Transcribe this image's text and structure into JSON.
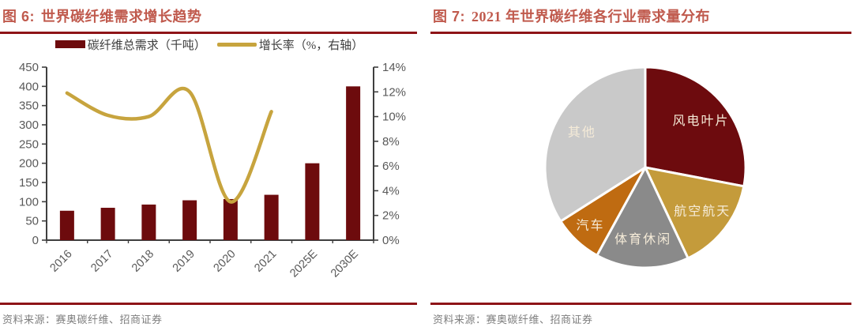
{
  "style": {
    "title_color": "#C05A4D",
    "rule_color": "#8E1418",
    "footer_color": "#7E7E7E",
    "axis_text_color": "#595959",
    "axis_line_color": "#3F3F3F",
    "legend_text_color": "#3D3D3D",
    "background": "#FFFFFF"
  },
  "figure6": {
    "title_label": "图 6:",
    "title_text": "世界碳纤维需求增长趋势",
    "source": "资料来源：赛奥碳纤维、招商证券",
    "chart_data": {
      "type": "bar",
      "subtype": "bar+line dual axis",
      "categories": [
        "2016",
        "2017",
        "2018",
        "2019",
        "2020",
        "2021",
        "2025E",
        "2030E"
      ],
      "series": [
        {
          "name": "碳纤维总需求（千吨）",
          "type": "bar",
          "axis": "left",
          "color": "#6D0B0D",
          "values": [
            76.5,
            84.2,
            92.6,
            103.7,
            106.9,
            118,
            200,
            400
          ]
        },
        {
          "name": "增长率（%，右轴）",
          "type": "line",
          "axis": "right",
          "color": "#C7A43E",
          "values": [
            11.9,
            10.1,
            10.0,
            12.0,
            3.1,
            10.4
          ]
        }
      ],
      "y_left": {
        "min": 0,
        "max": 450,
        "step": 50
      },
      "y_right": {
        "min": 0,
        "max": 14,
        "step": 2,
        "suffix": "%"
      },
      "grid": false,
      "legend_position": "top"
    }
  },
  "figure7": {
    "title_label": "图 7:",
    "title_text": "2021 年世界碳纤维各行业需求量分布",
    "source": "资料来源：赛奥碳纤维、招商证券",
    "chart_data": {
      "type": "pie",
      "start_angle_deg": 0,
      "direction": "clockwise",
      "label_color": "#F5EBD8",
      "slices": [
        {
          "label": "风电叶片",
          "value": 28,
          "color": "#6D0B0E"
        },
        {
          "label": "航空航天",
          "value": 15,
          "color": "#C49B3B"
        },
        {
          "label": "体育休闲",
          "value": 15,
          "color": "#8A8A8A"
        },
        {
          "label": "汽车",
          "value": 8,
          "color": "#BF6B11"
        },
        {
          "label": "其他",
          "value": 34,
          "color": "#C9C9C9"
        }
      ]
    }
  }
}
